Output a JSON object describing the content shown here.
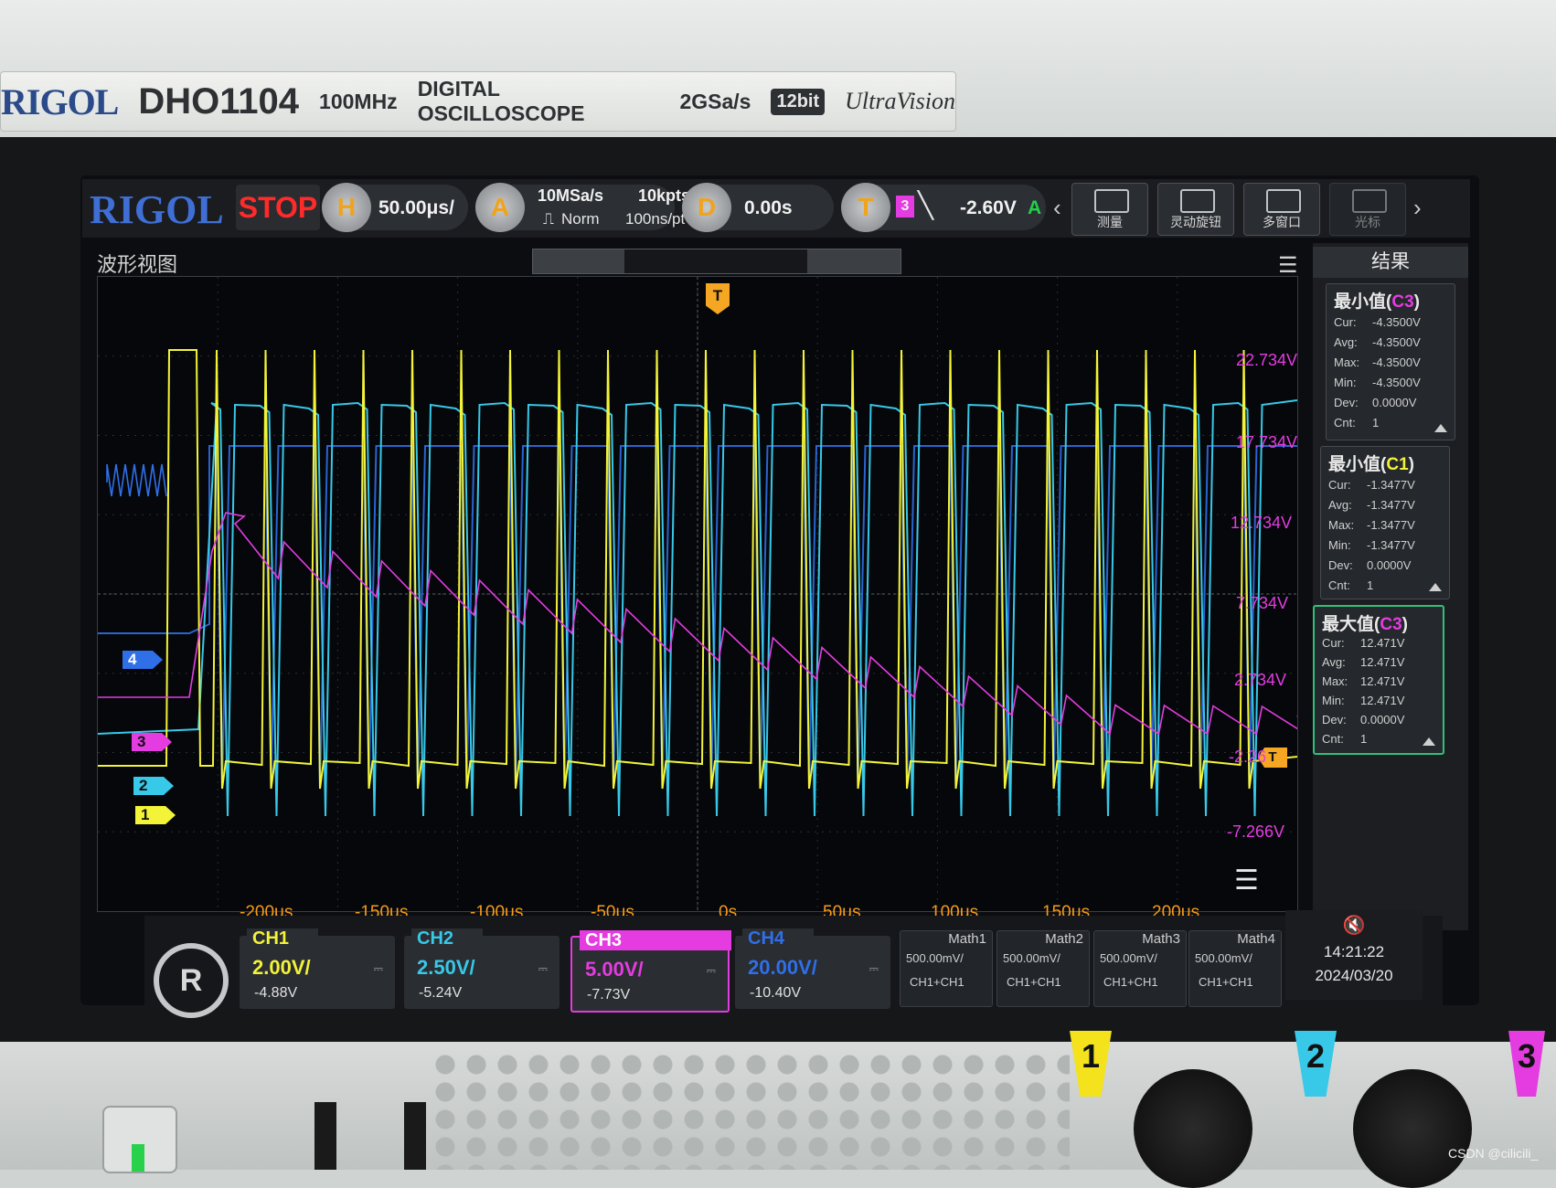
{
  "brand_plate": {
    "logo": "RIGOL",
    "model": "DHO1104",
    "bandwidth": "100MHz",
    "type": "DIGITAL OSCILLOSCOPE",
    "sample_rate": "2GSa/s",
    "bits": "12bit",
    "series": "UltraVision"
  },
  "toolbar": {
    "logo": "RIGOL",
    "run_state": "STOP",
    "horizontal": {
      "key": "H",
      "timebase": "50.00μs/"
    },
    "acquire": {
      "key": "A",
      "rate": "10MSa/s",
      "depth": "10kpts",
      "mode": "Norm",
      "resolution": "100ns/pt"
    },
    "delay": {
      "key": "D",
      "value": "0.00s"
    },
    "trigger": {
      "key": "T",
      "source": "3",
      "level": "-2.60V",
      "sweep": "A"
    },
    "buttons": [
      {
        "label": "测量"
      },
      {
        "label": "灵动旋钮"
      },
      {
        "label": "多窗口"
      },
      {
        "label": "光标"
      }
    ]
  },
  "waveform_view": {
    "title": "波形视图",
    "x_ticks": [
      "-200μs",
      "-150μs",
      "-100μs",
      "-50μs",
      "0s",
      "50μs",
      "100μs",
      "150μs",
      "200μs"
    ],
    "ch3_levels": [
      "22.734V",
      "17.734V",
      "12.734V",
      "7.734V",
      "2.734V",
      "-2.26",
      "-7.266V"
    ],
    "channel_markers": [
      "4",
      "3",
      "2",
      "1"
    ],
    "trigger_marker": "T"
  },
  "chart_data": {
    "type": "line",
    "title": "",
    "xlabel": "",
    "ylabel": "",
    "xlim": [
      -250,
      250
    ],
    "x_unit": "μs",
    "series": [
      {
        "name": "CH1",
        "color": "#f3f338",
        "description_values": "square pulses, period ~20μs"
      },
      {
        "name": "CH2",
        "color": "#38c8e8"
      },
      {
        "name": "CH3",
        "color": "#e43ce0"
      },
      {
        "name": "CH4",
        "color": "#2f6fe8"
      }
    ]
  },
  "results": {
    "title": "结果",
    "items": [
      {
        "label": "最小值",
        "source": "C3",
        "cur": "-4.3500V",
        "avg": "-4.3500V",
        "max": "-4.3500V",
        "min": "-4.3500V",
        "dev": "0.0000V",
        "cnt": "1"
      },
      {
        "label": "最小值",
        "source": "C1",
        "cur": "-1.3477V",
        "avg": "-1.3477V",
        "max": "-1.3477V",
        "min": "-1.3477V",
        "dev": "0.0000V",
        "cnt": "1"
      },
      {
        "label": "最大值",
        "source": "C3",
        "cur": "12.471V",
        "avg": "12.471V",
        "max": "12.471V",
        "min": "12.471V",
        "dev": "0.0000V",
        "cnt": "1"
      }
    ],
    "row_labels": {
      "cur": "Cur:",
      "avg": "Avg:",
      "max": "Max:",
      "min": "Min:",
      "dev": "Dev:",
      "cnt": "Cnt:"
    }
  },
  "channels": [
    {
      "name": "CH1",
      "scale": "2.00V/",
      "offset": "-4.88V",
      "color": "#f3f338"
    },
    {
      "name": "CH2",
      "scale": "2.50V/",
      "offset": "-5.24V",
      "color": "#38c8e8"
    },
    {
      "name": "CH3",
      "scale": "5.00V/",
      "offset": "-7.73V",
      "color": "#e43ce0"
    },
    {
      "name": "CH4",
      "scale": "20.00V/",
      "offset": "-10.40V",
      "color": "#2f6fe8"
    }
  ],
  "math": [
    {
      "name": "Math1",
      "scale": "500.00mV/",
      "expr": "CH1+CH1"
    },
    {
      "name": "Math2",
      "scale": "500.00mV/",
      "expr": "CH1+CH1"
    },
    {
      "name": "Math3",
      "scale": "500.00mV/",
      "expr": "CH1+CH1"
    },
    {
      "name": "Math4",
      "scale": "500.00mV/",
      "expr": "CH1+CH1"
    }
  ],
  "status": {
    "time": "14:21:22",
    "date": "2024/03/20"
  },
  "front_panel": {
    "inputs": [
      "1",
      "2",
      "3"
    ]
  },
  "watermark": "CSDN @cilicili_"
}
